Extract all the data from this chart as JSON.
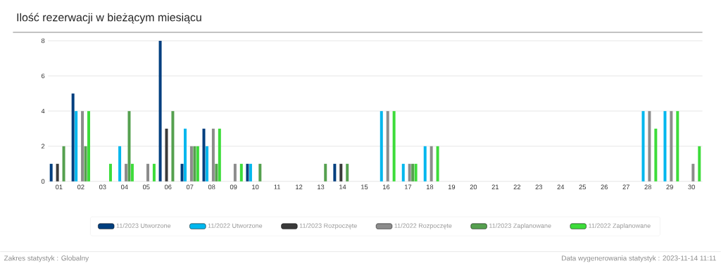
{
  "chart_data": {
    "type": "bar",
    "title": "Ilość rezerwacji w bieżącym miesiącu",
    "categories": [
      "01",
      "02",
      "03",
      "04",
      "05",
      "06",
      "07",
      "08",
      "09",
      "10",
      "11",
      "12",
      "13",
      "14",
      "15",
      "16",
      "17",
      "18",
      "19",
      "20",
      "21",
      "22",
      "23",
      "24",
      "25",
      "26",
      "27",
      "28",
      "29",
      "30"
    ],
    "series": [
      {
        "name": "11/2023 Utworzone",
        "color": "#003f7f",
        "values": [
          1,
          5,
          0,
          0,
          0,
          8,
          1,
          3,
          0,
          1,
          0,
          0,
          0,
          1,
          0,
          0,
          0,
          0,
          0,
          0,
          0,
          0,
          0,
          0,
          0,
          0,
          0,
          0,
          0,
          0
        ]
      },
      {
        "name": "11/2022 Utworzone",
        "color": "#00b7ee",
        "values": [
          0,
          4,
          0,
          2,
          0,
          0,
          3,
          2,
          0,
          1,
          0,
          0,
          0,
          0,
          0,
          4,
          1,
          2,
          0,
          0,
          0,
          0,
          0,
          0,
          0,
          0,
          0,
          4,
          4,
          0
        ]
      },
      {
        "name": "11/2023 Rozpoczęte",
        "color": "#3a3a3a",
        "values": [
          1,
          0,
          0,
          0,
          0,
          3,
          0,
          0,
          0,
          0,
          0,
          0,
          0,
          1,
          0,
          0,
          0,
          0,
          0,
          0,
          0,
          0,
          0,
          0,
          0,
          0,
          0,
          0,
          0,
          0
        ]
      },
      {
        "name": "11/2022 Rozpoczęte",
        "color": "#8c8c8c",
        "values": [
          0,
          4,
          0,
          1,
          1,
          0,
          2,
          3,
          1,
          0,
          0,
          0,
          0,
          0,
          0,
          4,
          1,
          2,
          0,
          0,
          0,
          0,
          0,
          0,
          0,
          0,
          0,
          4,
          4,
          1
        ]
      },
      {
        "name": "11/2023 Zaplanowane",
        "color": "#55a04f",
        "values": [
          2,
          2,
          0,
          4,
          0,
          4,
          2,
          1,
          0,
          1,
          0,
          0,
          1,
          1,
          0,
          0,
          1,
          0,
          0,
          0,
          0,
          0,
          0,
          0,
          0,
          0,
          0,
          0,
          0,
          0
        ]
      },
      {
        "name": "11/2022 Zaplanowane",
        "color": "#3ddc3a",
        "values": [
          0,
          4,
          1,
          1,
          1,
          0,
          2,
          3,
          1,
          0,
          0,
          0,
          0,
          0,
          0,
          4,
          1,
          2,
          0,
          0,
          0,
          0,
          0,
          0,
          0,
          0,
          0,
          3,
          4,
          2
        ]
      }
    ],
    "ylim": [
      0,
      8
    ],
    "yticks": [
      0,
      2,
      4,
      6,
      8
    ],
    "grid": "y",
    "legend": "bottom",
    "annotations": [
      "Zakres statystyk : Globalny",
      "Data wygenerowania statystyk : 2023-11-14 11:11"
    ]
  }
}
